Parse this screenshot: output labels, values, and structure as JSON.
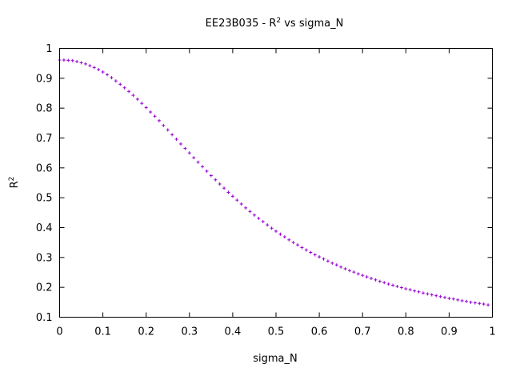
{
  "chart_data": {
    "type": "scatter",
    "title": "EE23B035 - R",
    "title_sup": "2",
    "title_suffix": " vs sigma_N",
    "xlabel": "sigma_N",
    "ylabel": "R",
    "ylabel_sup": "2",
    "xlim": [
      0,
      1
    ],
    "ylim": [
      0.1,
      1
    ],
    "x_ticks": [
      "0",
      "0.1",
      "0.2",
      "0.3",
      "0.4",
      "0.5",
      "0.6",
      "0.7",
      "0.8",
      "0.9",
      "1"
    ],
    "y_ticks": [
      "0.1",
      "0.2",
      "0.3",
      "0.4",
      "0.5",
      "0.6",
      "0.7",
      "0.8",
      "0.9",
      "1"
    ],
    "grid": false,
    "marker": "+",
    "series": [
      {
        "color": "#9400d3",
        "x": [
          0.0,
          0.01,
          0.02,
          0.03,
          0.04,
          0.05,
          0.06,
          0.07,
          0.08,
          0.09,
          0.1,
          0.11,
          0.12,
          0.13,
          0.14,
          0.15,
          0.16,
          0.17,
          0.18,
          0.19,
          0.2,
          0.21,
          0.22,
          0.23,
          0.24,
          0.25,
          0.26,
          0.27,
          0.28,
          0.29,
          0.3,
          0.31,
          0.32,
          0.33,
          0.34,
          0.35,
          0.36,
          0.37,
          0.38,
          0.39,
          0.4,
          0.41,
          0.42,
          0.43,
          0.44,
          0.45,
          0.46,
          0.47,
          0.48,
          0.49,
          0.5,
          0.51,
          0.52,
          0.53,
          0.54,
          0.55,
          0.56,
          0.57,
          0.58,
          0.59,
          0.6,
          0.61,
          0.62,
          0.63,
          0.64,
          0.65,
          0.66,
          0.67,
          0.68,
          0.69,
          0.7,
          0.71,
          0.72,
          0.73,
          0.74,
          0.75,
          0.76,
          0.77,
          0.78,
          0.79,
          0.8,
          0.81,
          0.82,
          0.83,
          0.84,
          0.85,
          0.86,
          0.87,
          0.88,
          0.89,
          0.9,
          0.91,
          0.92,
          0.93,
          0.94,
          0.95,
          0.96,
          0.97,
          0.98,
          0.99
        ],
        "y": [
          0.961,
          0.961,
          0.96,
          0.959,
          0.956,
          0.952,
          0.948,
          0.942,
          0.936,
          0.929,
          0.921,
          0.912,
          0.902,
          0.891,
          0.88,
          0.868,
          0.856,
          0.843,
          0.83,
          0.816,
          0.802,
          0.787,
          0.773,
          0.758,
          0.742,
          0.727,
          0.711,
          0.696,
          0.68,
          0.665,
          0.65,
          0.634,
          0.619,
          0.604,
          0.589,
          0.574,
          0.56,
          0.546,
          0.532,
          0.518,
          0.505,
          0.492,
          0.479,
          0.466,
          0.454,
          0.442,
          0.431,
          0.42,
          0.409,
          0.398,
          0.388,
          0.378,
          0.369,
          0.359,
          0.35,
          0.342,
          0.333,
          0.325,
          0.317,
          0.309,
          0.302,
          0.295,
          0.288,
          0.281,
          0.275,
          0.268,
          0.262,
          0.256,
          0.251,
          0.245,
          0.24,
          0.235,
          0.23,
          0.225,
          0.22,
          0.216,
          0.211,
          0.207,
          0.203,
          0.199,
          0.195,
          0.192,
          0.188,
          0.185,
          0.181,
          0.178,
          0.175,
          0.172,
          0.169,
          0.166,
          0.163,
          0.161,
          0.158,
          0.155,
          0.153,
          0.15,
          0.148,
          0.146,
          0.144,
          0.141
        ]
      }
    ]
  }
}
